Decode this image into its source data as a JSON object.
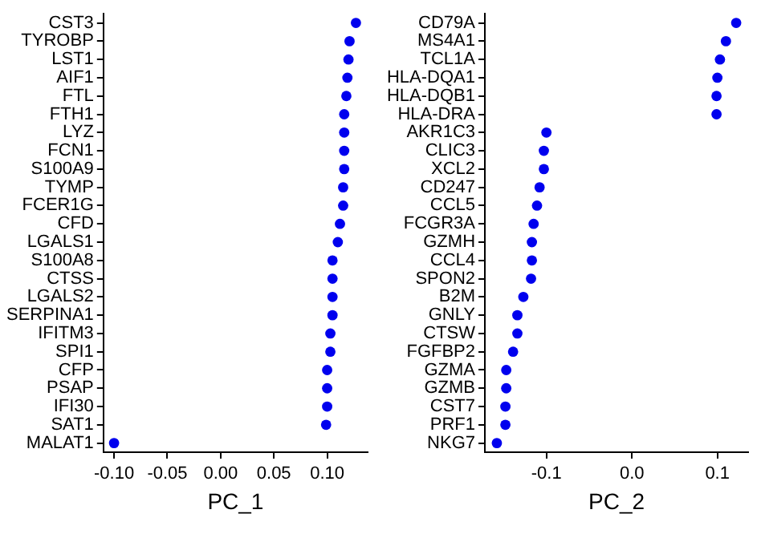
{
  "chart_data": [
    {
      "type": "scatter",
      "orientation": "horizontal",
      "xlabel": "PC_1",
      "marker": "circle",
      "grid": false,
      "legend": false,
      "color": "#0000ee",
      "categories": [
        "CST3",
        "TYROBP",
        "LST1",
        "AIF1",
        "FTL",
        "FTH1",
        "LYZ",
        "FCN1",
        "S100A9",
        "TYMP",
        "FCER1G",
        "CFD",
        "LGALS1",
        "S100A8",
        "CTSS",
        "LGALS2",
        "SERPINA1",
        "IFITM3",
        "SPI1",
        "CFP",
        "PSAP",
        "IFI30",
        "SAT1",
        "MALAT1"
      ],
      "values": [
        0.127,
        0.121,
        0.12,
        0.119,
        0.118,
        0.116,
        0.116,
        0.116,
        0.116,
        0.115,
        0.115,
        0.112,
        0.11,
        0.105,
        0.105,
        0.105,
        0.105,
        0.103,
        0.103,
        0.1,
        0.1,
        0.1,
        0.099,
        -0.1
      ],
      "xlim": [
        -0.11,
        0.138
      ],
      "xticks": [
        {
          "value": -0.1,
          "label": "-0.10"
        },
        {
          "value": -0.05,
          "label": "-0.05"
        },
        {
          "value": 0,
          "label": "0.00"
        },
        {
          "value": 0.05,
          "label": "0.05"
        },
        {
          "value": 0.1,
          "label": "0.10"
        }
      ]
    },
    {
      "type": "scatter",
      "orientation": "horizontal",
      "xlabel": "PC_2",
      "marker": "circle",
      "grid": false,
      "legend": false,
      "color": "#0000ee",
      "categories": [
        "CD79A",
        "MS4A1",
        "TCL1A",
        "HLA-DQA1",
        "HLA-DQB1",
        "HLA-DRA",
        "AKR1C3",
        "CLIC3",
        "XCL2",
        "CD247",
        "CCL5",
        "FCGR3A",
        "GZMH",
        "CCL4",
        "SPON2",
        "B2M",
        "GNLY",
        "CTSW",
        "FGFBP2",
        "GZMA",
        "GZMB",
        "CST7",
        "PRF1",
        "NKG7"
      ],
      "values": [
        0.122,
        0.11,
        0.103,
        0.1,
        0.099,
        0.099,
        -0.1,
        -0.103,
        -0.103,
        -0.108,
        -0.111,
        -0.115,
        -0.117,
        -0.117,
        -0.118,
        -0.127,
        -0.134,
        -0.134,
        -0.139,
        -0.147,
        -0.147,
        -0.148,
        -0.148,
        -0.158
      ],
      "xlim": [
        -0.172,
        0.136
      ],
      "xticks": [
        -0.1,
        {
          "value": 0,
          "label": "0.0"
        },
        0.1
      ]
    }
  ]
}
